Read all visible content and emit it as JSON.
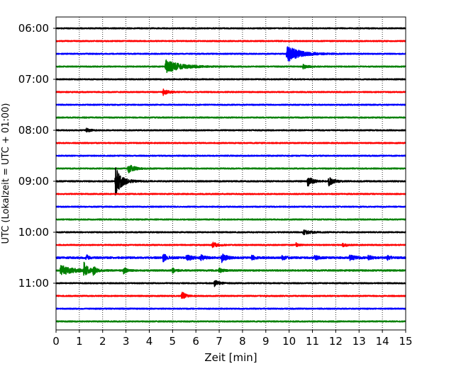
{
  "chart_data": {
    "type": "line",
    "title": "",
    "xlabel": "Zeit  [min]",
    "ylabel": "UTC (Lokalzeit = UTC + 01:00)",
    "xlim": [
      0,
      15
    ],
    "x_ticks": [
      "0",
      "1",
      "2",
      "3",
      "4",
      "5",
      "6",
      "7",
      "8",
      "9",
      "10",
      "11",
      "12",
      "13",
      "14",
      "15"
    ],
    "y_tick_labels": [
      "06:00",
      "07:00",
      "08:00",
      "09:00",
      "10:00",
      "11:00"
    ],
    "x_grid": true,
    "y_grid": false,
    "trace_colors": [
      "#000000",
      "#ff0000",
      "#0000ff",
      "#008000"
    ],
    "traces": [
      {
        "start": "06:00",
        "amplitude": 0.8,
        "events": []
      },
      {
        "start": "06:15",
        "amplitude": 0.8,
        "events": []
      },
      {
        "start": "06:30",
        "amplitude": 0.8,
        "events": [
          {
            "minute": 9.9,
            "amplitude": 12,
            "duration": 0.5
          }
        ]
      },
      {
        "start": "06:45",
        "amplitude": 0.8,
        "events": [
          {
            "minute": 4.7,
            "amplitude": 9,
            "duration": 0.6
          },
          {
            "minute": 10.6,
            "amplitude": 3,
            "duration": 0.2
          }
        ]
      },
      {
        "start": "07:00",
        "amplitude": 0.8,
        "events": []
      },
      {
        "start": "07:15",
        "amplitude": 0.8,
        "events": [
          {
            "minute": 4.6,
            "amplitude": 4,
            "duration": 0.2
          }
        ]
      },
      {
        "start": "07:30",
        "amplitude": 0.8,
        "events": []
      },
      {
        "start": "07:45",
        "amplitude": 0.8,
        "events": []
      },
      {
        "start": "08:00",
        "amplitude": 0.8,
        "events": [
          {
            "minute": 1.3,
            "amplitude": 3,
            "duration": 0.15
          }
        ]
      },
      {
        "start": "08:15",
        "amplitude": 0.8,
        "events": []
      },
      {
        "start": "08:30",
        "amplitude": 0.8,
        "events": []
      },
      {
        "start": "08:45",
        "amplitude": 0.8,
        "events": [
          {
            "minute": 3.1,
            "amplitude": 6,
            "duration": 0.25
          }
        ]
      },
      {
        "start": "09:00",
        "amplitude": 0.9,
        "events": [
          {
            "minute": 2.55,
            "amplitude": 20,
            "duration": 0.25
          },
          {
            "minute": 10.8,
            "amplitude": 7,
            "duration": 0.2
          },
          {
            "minute": 11.7,
            "amplitude": 6,
            "duration": 0.2
          }
        ]
      },
      {
        "start": "09:15",
        "amplitude": 0.8,
        "events": []
      },
      {
        "start": "09:30",
        "amplitude": 0.8,
        "events": []
      },
      {
        "start": "09:45",
        "amplitude": 0.8,
        "events": []
      },
      {
        "start": "10:00",
        "amplitude": 0.8,
        "events": [
          {
            "minute": 10.6,
            "amplitude": 3,
            "duration": 0.3
          }
        ]
      },
      {
        "start": "10:15",
        "amplitude": 0.8,
        "events": [
          {
            "minute": 6.7,
            "amplitude": 4,
            "duration": 0.2
          },
          {
            "minute": 10.3,
            "amplitude": 3,
            "duration": 0.1
          },
          {
            "minute": 12.3,
            "amplitude": 3,
            "duration": 0.15
          }
        ]
      },
      {
        "start": "10:30",
        "amplitude": 1.2,
        "events": [
          {
            "minute": 1.3,
            "amplitude": 4,
            "duration": 0.1
          },
          {
            "minute": 4.6,
            "amplitude": 6,
            "duration": 0.15
          },
          {
            "minute": 5.6,
            "amplitude": 5,
            "duration": 0.2
          },
          {
            "minute": 6.2,
            "amplitude": 4,
            "duration": 0.15
          },
          {
            "minute": 7.1,
            "amplitude": 6,
            "duration": 0.2
          },
          {
            "minute": 8.4,
            "amplitude": 3,
            "duration": 0.15
          },
          {
            "minute": 9.7,
            "amplitude": 3,
            "duration": 0.15
          },
          {
            "minute": 11.1,
            "amplitude": 3,
            "duration": 0.15
          },
          {
            "minute": 12.6,
            "amplitude": 4,
            "duration": 0.2
          },
          {
            "minute": 13.4,
            "amplitude": 3,
            "duration": 0.15
          },
          {
            "minute": 14.2,
            "amplitude": 3,
            "duration": 0.15
          }
        ]
      },
      {
        "start": "10:45",
        "amplitude": 1.0,
        "events": [
          {
            "minute": 0.2,
            "amplitude": 7,
            "duration": 0.5
          },
          {
            "minute": 1.2,
            "amplitude": 10,
            "duration": 0.15
          },
          {
            "minute": 1.6,
            "amplitude": 6,
            "duration": 0.12
          },
          {
            "minute": 2.9,
            "amplitude": 5,
            "duration": 0.12
          },
          {
            "minute": 5.0,
            "amplitude": 3,
            "duration": 0.15
          },
          {
            "minute": 7.0,
            "amplitude": 3,
            "duration": 0.15
          }
        ]
      },
      {
        "start": "11:00",
        "amplitude": 0.8,
        "events": [
          {
            "minute": 6.8,
            "amplitude": 4,
            "duration": 0.2
          }
        ]
      },
      {
        "start": "11:15",
        "amplitude": 0.8,
        "events": [
          {
            "minute": 5.4,
            "amplitude": 6,
            "duration": 0.15
          }
        ]
      },
      {
        "start": "11:30",
        "amplitude": 0.8,
        "events": []
      },
      {
        "start": "11:45",
        "amplitude": 0.8,
        "events": []
      }
    ]
  }
}
